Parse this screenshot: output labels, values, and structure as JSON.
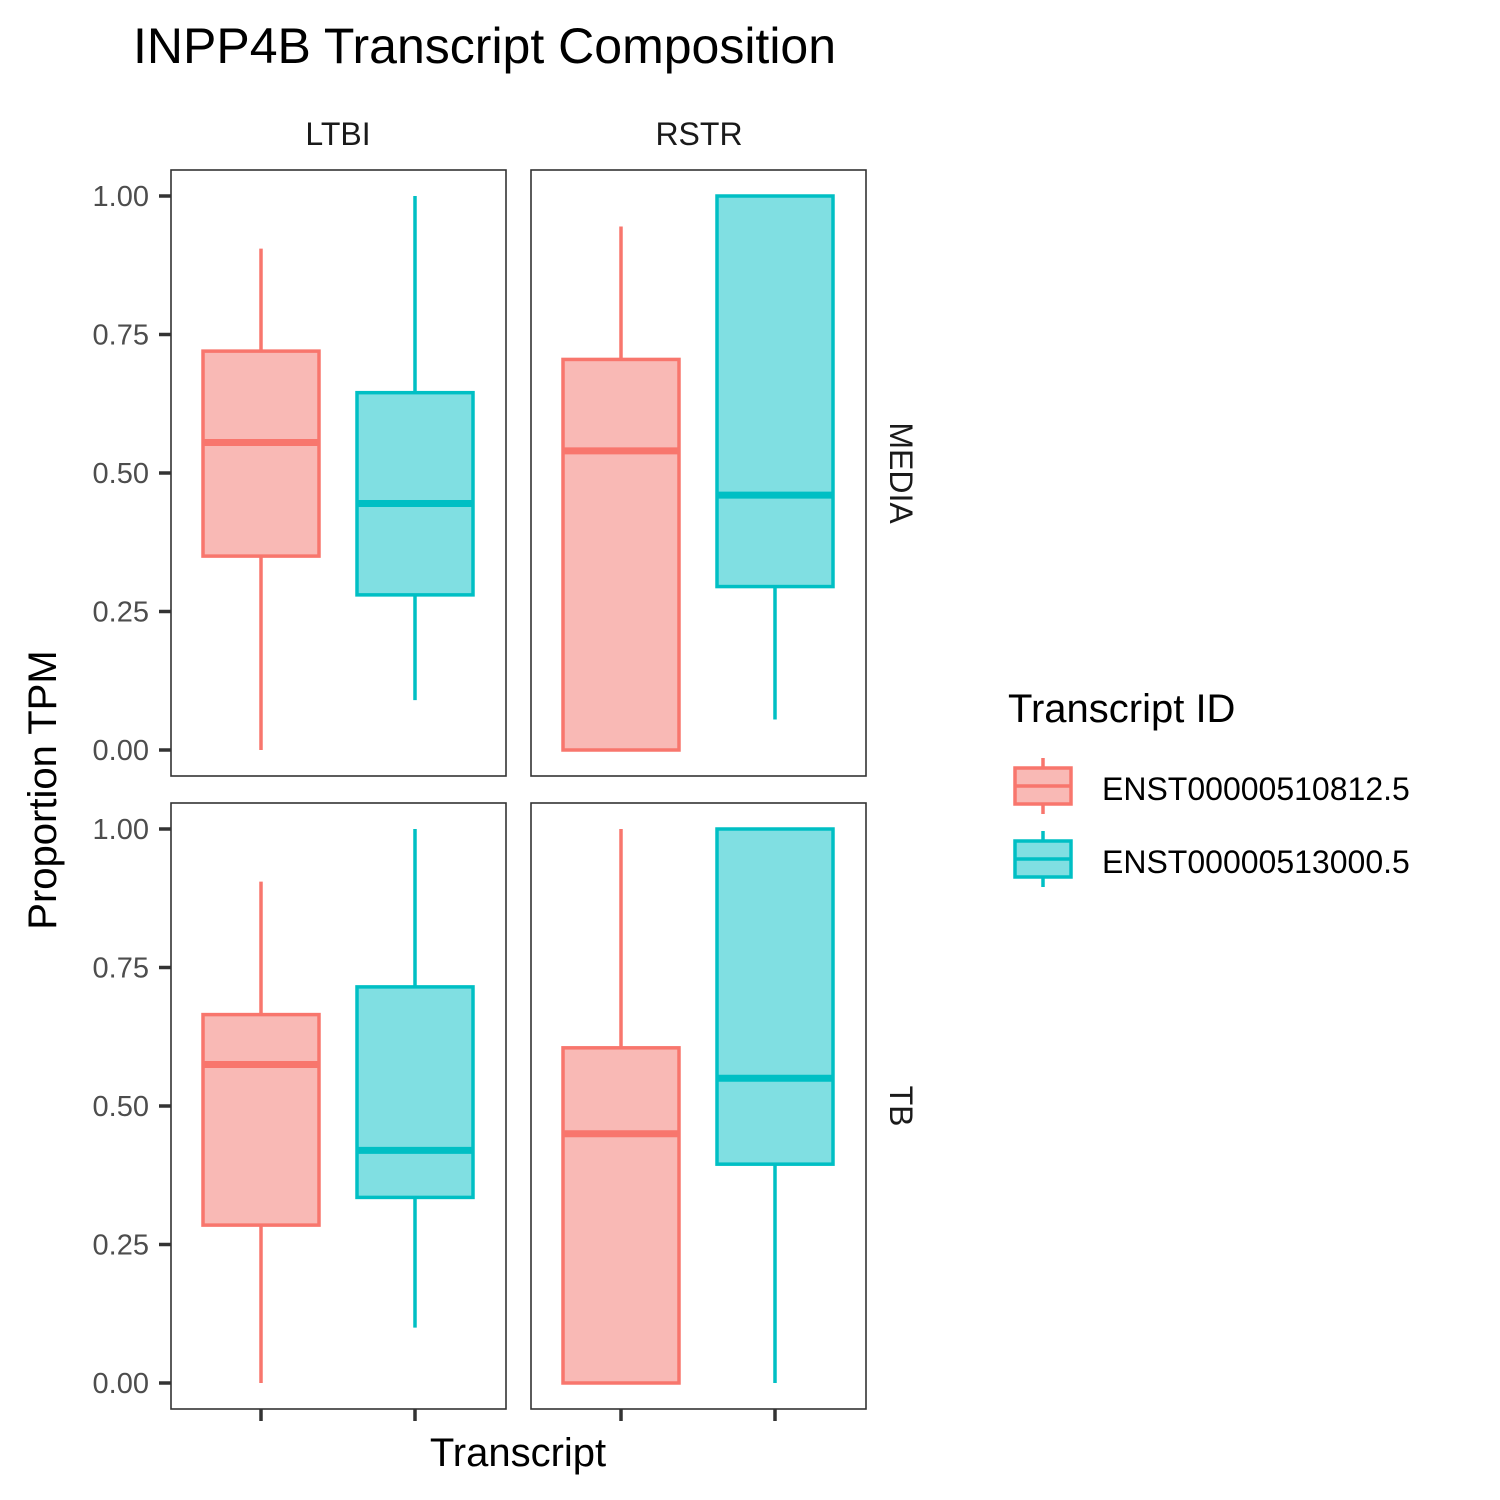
{
  "chart_data": {
    "type": "boxplot",
    "title": "INPP4B Transcript Composition",
    "xlabel": "Transcript",
    "ylabel": "Proportion TPM",
    "ylim": [
      0,
      1
    ],
    "y_ticks": [
      "0.00",
      "0.25",
      "0.50",
      "0.75",
      "1.00"
    ],
    "y_tick_values": [
      0,
      0.25,
      0.5,
      0.75,
      1.0
    ],
    "grid": false,
    "legend_position": "right",
    "facet_columns": [
      "LTBI",
      "RSTR"
    ],
    "facet_rows": [
      "MEDIA",
      "TB"
    ],
    "legend": {
      "title": "Transcript ID",
      "entries": [
        {
          "label": "ENST00000510812.5",
          "line_color": "#F8766D",
          "fill_color": "#F9B9B5"
        },
        {
          "label": "ENST00000513000.5",
          "line_color": "#00BFC4",
          "fill_color": "#80DFE2"
        }
      ]
    },
    "series": [
      "ENST00000510812.5",
      "ENST00000513000.5"
    ],
    "panels": [
      {
        "column": "LTBI",
        "row": "MEDIA",
        "boxes": [
          {
            "series": "ENST00000510812.5",
            "min": 0.0,
            "q1": 0.35,
            "median": 0.555,
            "q3": 0.72,
            "max": 0.905
          },
          {
            "series": "ENST00000513000.5",
            "min": 0.09,
            "q1": 0.28,
            "median": 0.445,
            "q3": 0.645,
            "max": 1.0
          }
        ]
      },
      {
        "column": "RSTR",
        "row": "MEDIA",
        "boxes": [
          {
            "series": "ENST00000510812.5",
            "min": 0.0,
            "q1": 0.0,
            "median": 0.54,
            "q3": 0.705,
            "max": 0.945
          },
          {
            "series": "ENST00000513000.5",
            "min": 0.055,
            "q1": 0.295,
            "median": 0.46,
            "q3": 1.0,
            "max": 1.0
          }
        ]
      },
      {
        "column": "LTBI",
        "row": "TB",
        "boxes": [
          {
            "series": "ENST00000510812.5",
            "min": 0.0,
            "q1": 0.285,
            "median": 0.575,
            "q3": 0.665,
            "max": 0.905
          },
          {
            "series": "ENST00000513000.5",
            "min": 0.1,
            "q1": 0.335,
            "median": 0.42,
            "q3": 0.715,
            "max": 1.0
          }
        ]
      },
      {
        "column": "RSTR",
        "row": "TB",
        "boxes": [
          {
            "series": "ENST00000510812.5",
            "min": 0.0,
            "q1": 0.0,
            "median": 0.45,
            "q3": 0.605,
            "max": 1.0
          },
          {
            "series": "ENST00000513000.5",
            "min": 0.0,
            "q1": 0.395,
            "median": 0.55,
            "q3": 1.0,
            "max": 1.0
          }
        ]
      }
    ]
  }
}
